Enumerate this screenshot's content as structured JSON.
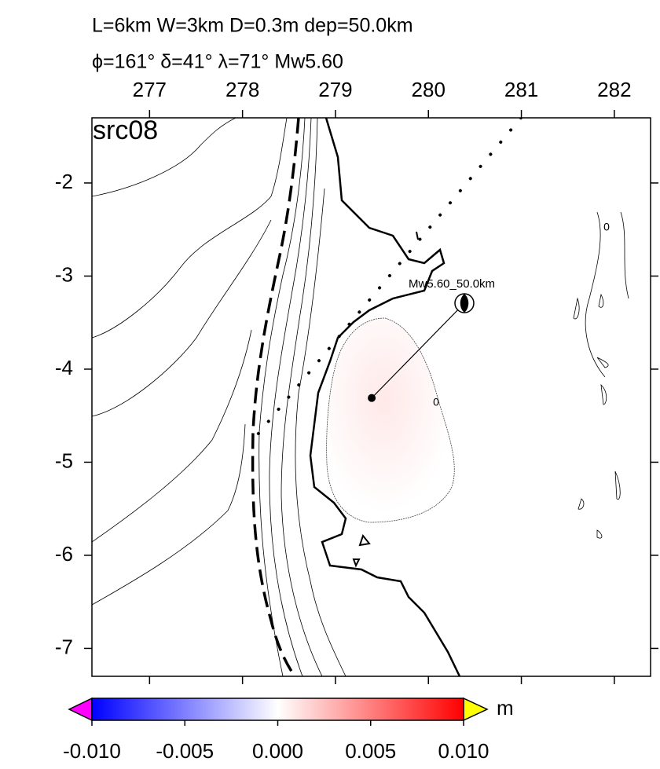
{
  "map": {
    "title_line1": "L=6km W=3km D=0.3m dep=50.0km",
    "title_line2": "ϕ=161° δ=41° λ=71° Mw5.60",
    "panel_label": "src08",
    "source_label": "Mw5.60_50.0km",
    "contour_labels": [
      "0",
      "0"
    ],
    "xlim": [
      276.38,
      282.39
    ],
    "ylim": [
      -7.3,
      -1.3
    ],
    "xticks": [
      277,
      278,
      279,
      280,
      281,
      282
    ],
    "yticks": [
      -2,
      -3,
      -4,
      -5,
      -6,
      -7
    ],
    "epicenter": [
      279.39,
      -4.31
    ]
  },
  "colorbar": {
    "lim": [
      -0.01,
      0.01
    ],
    "ticks": [
      {
        "value": -0.01,
        "label": "-0.010"
      },
      {
        "value": -0.005,
        "label": "-0.005"
      },
      {
        "value": 0,
        "label": "0.000"
      },
      {
        "value": 0.005,
        "label": "0.005"
      },
      {
        "value": 0.01,
        "label": "0.010"
      }
    ],
    "unit": "m",
    "colors": [
      "#0000ff",
      "#ffffff",
      "#ff0000"
    ],
    "under_color": "#ff00ff",
    "over_color": "#ffff00"
  }
}
